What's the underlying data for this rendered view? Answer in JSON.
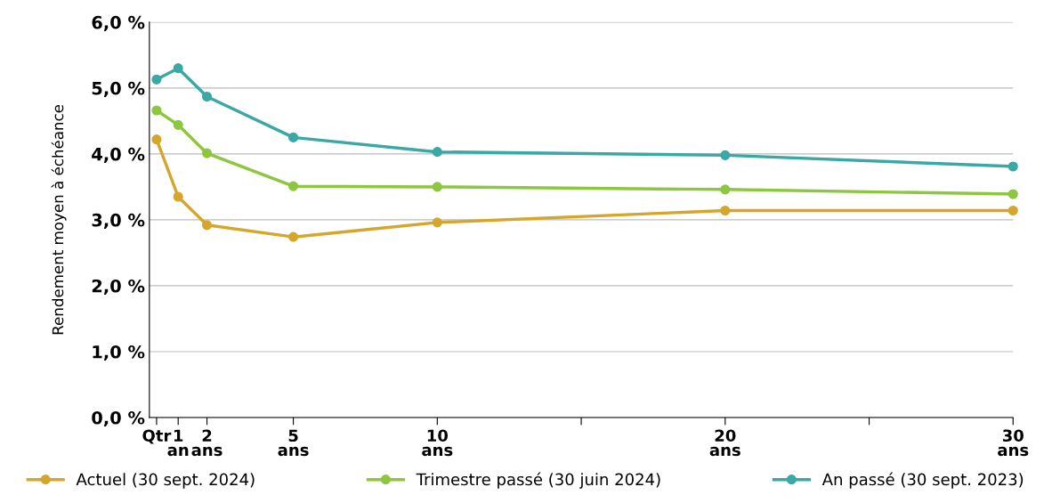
{
  "chart_data": {
    "type": "line",
    "ylabel": "Rendement moyen à échéance",
    "x": [
      0.25,
      1,
      2,
      5,
      10,
      20,
      30
    ],
    "series": [
      {
        "name": "Actuel (30 sept. 2024)",
        "color": "#d4a72c",
        "values": [
          4.22,
          3.35,
          2.92,
          2.74,
          2.96,
          3.14,
          3.14
        ]
      },
      {
        "name": "Trimestre passé (30 juin 2024)",
        "color": "#8dc63f",
        "values": [
          4.66,
          4.44,
          4.01,
          3.51,
          3.5,
          3.46,
          3.39
        ]
      },
      {
        "name": "An passé (30 sept. 2023)",
        "color": "#3aa8a4",
        "values": [
          5.13,
          5.3,
          4.87,
          4.25,
          4.03,
          3.98,
          3.81
        ]
      }
    ],
    "xlim": [
      0,
      30
    ],
    "xticks": [
      {
        "value": 0.25,
        "label": "Qtr"
      },
      {
        "value": 1,
        "label": "1\nan"
      },
      {
        "value": 2,
        "label": "2\nans"
      },
      {
        "value": 5,
        "label": "5\nans"
      },
      {
        "value": 10,
        "label": "10\nans"
      },
      {
        "value": 15,
        "label": null
      },
      {
        "value": 20,
        "label": "20\nans"
      },
      {
        "value": 25,
        "label": null
      },
      {
        "value": 30,
        "label": "30\nans"
      }
    ],
    "ylim": [
      0,
      6
    ],
    "yticks": [
      {
        "value": 0,
        "label": "0,0 %"
      },
      {
        "value": 1,
        "label": "1,0 %"
      },
      {
        "value": 2,
        "label": "2,0 %"
      },
      {
        "value": 3,
        "label": "3,0 %"
      },
      {
        "value": 4,
        "label": "4,0 %"
      },
      {
        "value": 5,
        "label": "5,0 %"
      },
      {
        "value": 6,
        "label": "6,0 %"
      }
    ],
    "grid": "y",
    "legend": "bottom",
    "marker": "circle",
    "line_style": "solid"
  }
}
